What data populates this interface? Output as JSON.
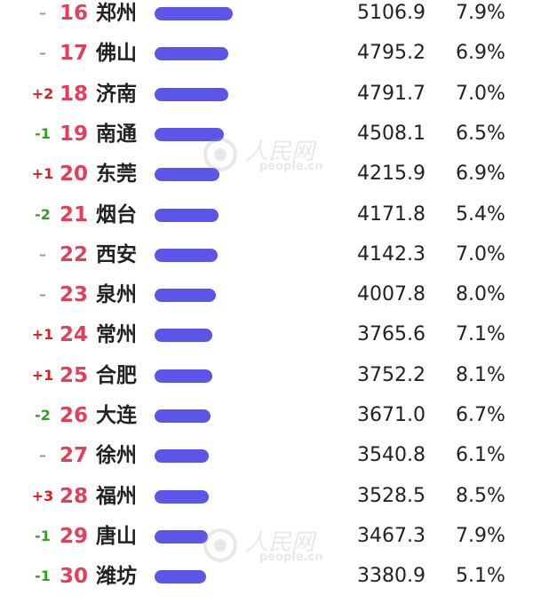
{
  "colors": {
    "rank": "#e2405a",
    "bar": "#5b56e8",
    "change_up": "#d81e1e",
    "change_down": "#3a9a2a",
    "change_same": "#999999",
    "text": "#222222"
  },
  "watermark": {
    "text": "人民网",
    "sub": "people.cn"
  },
  "chart_data": {
    "type": "table",
    "columns": [
      "change",
      "rank",
      "city",
      "gdp",
      "growth"
    ],
    "xlim": [
      0,
      5106.9
    ],
    "rows": [
      {
        "change": "–",
        "rank": "16",
        "city": "郑州",
        "gdp": "5106.9",
        "growth": "7.9%",
        "value": 5106.9
      },
      {
        "change": "–",
        "rank": "17",
        "city": "佛山",
        "gdp": "4795.2",
        "growth": "6.9%",
        "value": 4795.2
      },
      {
        "change": "+2",
        "rank": "18",
        "city": "济南",
        "gdp": "4791.7",
        "growth": "7.0%",
        "value": 4791.7
      },
      {
        "change": "-1",
        "rank": "19",
        "city": "南通",
        "gdp": "4508.1",
        "growth": "6.5%",
        "value": 4508.1
      },
      {
        "change": "+1",
        "rank": "20",
        "city": "东莞",
        "gdp": "4215.9",
        "growth": "6.9%",
        "value": 4215.9
      },
      {
        "change": "-2",
        "rank": "21",
        "city": "烟台",
        "gdp": "4171.8",
        "growth": "5.4%",
        "value": 4171.8
      },
      {
        "change": "–",
        "rank": "22",
        "city": "西安",
        "gdp": "4142.3",
        "growth": "7.0%",
        "value": 4142.3
      },
      {
        "change": "–",
        "rank": "23",
        "city": "泉州",
        "gdp": "4007.8",
        "growth": "8.0%",
        "value": 4007.8
      },
      {
        "change": "+1",
        "rank": "24",
        "city": "常州",
        "gdp": "3765.6",
        "growth": "7.1%",
        "value": 3765.6
      },
      {
        "change": "+1",
        "rank": "25",
        "city": "合肥",
        "gdp": "3752.2",
        "growth": "8.1%",
        "value": 3752.2
      },
      {
        "change": "-2",
        "rank": "26",
        "city": "大连",
        "gdp": "3671.0",
        "growth": "6.7%",
        "value": 3671.0
      },
      {
        "change": "–",
        "rank": "27",
        "city": "徐州",
        "gdp": "3540.8",
        "growth": "6.1%",
        "value": 3540.8
      },
      {
        "change": "+3",
        "rank": "28",
        "city": "福州",
        "gdp": "3528.5",
        "growth": "8.5%",
        "value": 3528.5
      },
      {
        "change": "-1",
        "rank": "29",
        "city": "唐山",
        "gdp": "3467.3",
        "growth": "7.9%",
        "value": 3467.3
      },
      {
        "change": "-1",
        "rank": "30",
        "city": "潍坊",
        "gdp": "3380.9",
        "growth": "5.1%",
        "value": 3380.9
      }
    ]
  }
}
